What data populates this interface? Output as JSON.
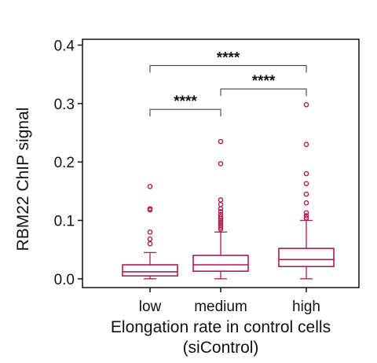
{
  "chart_data": {
    "type": "box",
    "title": "",
    "xlabel": "Elongation rate in control cells",
    "xlabel_sub": "(siControl)",
    "ylabel": "RBM22 ChIP signal",
    "ylim": [
      -0.015,
      0.41
    ],
    "yticks": [
      0.0,
      0.1,
      0.2,
      0.3,
      0.4
    ],
    "ytick_labels": [
      "0.0",
      "0.1",
      "0.2",
      "0.3",
      "0.4"
    ],
    "categories": [
      "low",
      "medium",
      "high"
    ],
    "grid": false,
    "color": "#b01c4e",
    "boxes": [
      {
        "category": "low",
        "whisker_low": 0.0,
        "q1": 0.005,
        "median": 0.012,
        "q3": 0.024,
        "whisker_high": 0.045,
        "outliers": [
          0.06,
          0.068,
          0.08,
          0.118,
          0.12,
          0.158
        ]
      },
      {
        "category": "medium",
        "whisker_low": 0.0,
        "q1": 0.013,
        "median": 0.024,
        "q3": 0.04,
        "whisker_high": 0.08,
        "outliers": [
          0.085,
          0.088,
          0.091,
          0.094,
          0.097,
          0.1,
          0.103,
          0.106,
          0.11,
          0.115,
          0.12,
          0.127,
          0.135,
          0.197,
          0.235
        ]
      },
      {
        "category": "high",
        "whisker_low": 0.0,
        "q1": 0.021,
        "median": 0.033,
        "q3": 0.052,
        "whisker_high": 0.1,
        "outliers": [
          0.104,
          0.108,
          0.113,
          0.13,
          0.145,
          0.163,
          0.18,
          0.23,
          0.298
        ]
      }
    ],
    "significance": [
      {
        "from": 1,
        "to": 2,
        "label": "****",
        "y": 0.34
      },
      {
        "from": 2,
        "to": 3,
        "label": "****",
        "y": 0.305
      },
      {
        "from": 1,
        "to": 2,
        "label": "****",
        "y": 0.265
      }
    ]
  }
}
